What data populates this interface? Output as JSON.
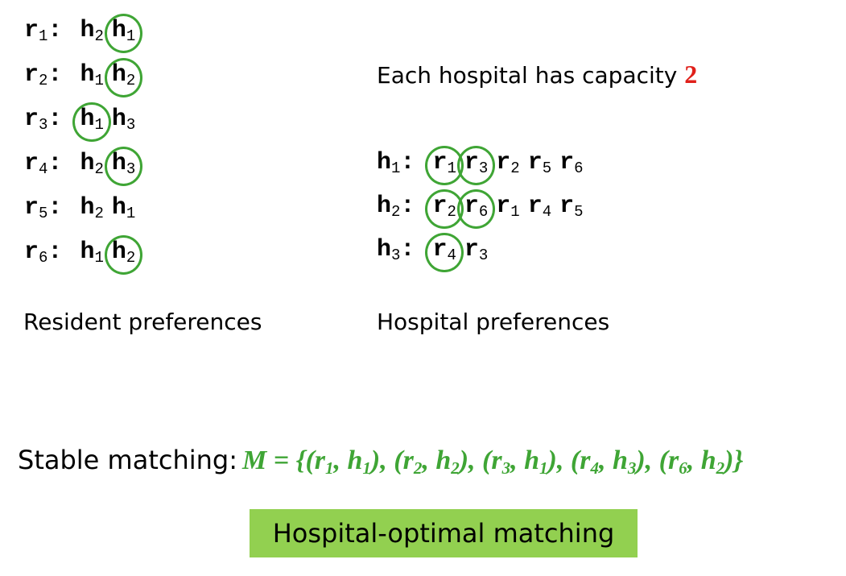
{
  "residents": [
    {
      "label": "r",
      "sub": "1",
      "prefs": [
        {
          "name": "h",
          "sub": "2",
          "matched": false
        },
        {
          "name": "h",
          "sub": "1",
          "matched": true
        }
      ]
    },
    {
      "label": "r",
      "sub": "2",
      "prefs": [
        {
          "name": "h",
          "sub": "1",
          "matched": false
        },
        {
          "name": "h",
          "sub": "2",
          "matched": true
        }
      ]
    },
    {
      "label": "r",
      "sub": "3",
      "prefs": [
        {
          "name": "h",
          "sub": "1",
          "matched": true
        },
        {
          "name": "h",
          "sub": "3",
          "matched": false
        }
      ]
    },
    {
      "label": "r",
      "sub": "4",
      "prefs": [
        {
          "name": "h",
          "sub": "2",
          "matched": false
        },
        {
          "name": "h",
          "sub": "3",
          "matched": true
        }
      ]
    },
    {
      "label": "r",
      "sub": "5",
      "prefs": [
        {
          "name": "h",
          "sub": "2",
          "matched": false
        },
        {
          "name": "h",
          "sub": "1",
          "matched": false
        }
      ]
    },
    {
      "label": "r",
      "sub": "6",
      "prefs": [
        {
          "name": "h",
          "sub": "1",
          "matched": false
        },
        {
          "name": "h",
          "sub": "2",
          "matched": true
        }
      ]
    }
  ],
  "hospitals": [
    {
      "label": "h",
      "sub": "1",
      "prefs": [
        {
          "name": "r",
          "sub": "1",
          "matched": true
        },
        {
          "name": "r",
          "sub": "3",
          "matched": true
        },
        {
          "name": "r",
          "sub": "2",
          "matched": false
        },
        {
          "name": "r",
          "sub": "5",
          "matched": false
        },
        {
          "name": "r",
          "sub": "6",
          "matched": false
        }
      ]
    },
    {
      "label": "h",
      "sub": "2",
      "prefs": [
        {
          "name": "r",
          "sub": "2",
          "matched": true
        },
        {
          "name": "r",
          "sub": "6",
          "matched": true
        },
        {
          "name": "r",
          "sub": "1",
          "matched": false
        },
        {
          "name": "r",
          "sub": "4",
          "matched": false
        },
        {
          "name": "r",
          "sub": "5",
          "matched": false
        }
      ]
    },
    {
      "label": "h",
      "sub": "3",
      "prefs": [
        {
          "name": "r",
          "sub": "4",
          "matched": true
        },
        {
          "name": "r",
          "sub": "3",
          "matched": false
        }
      ]
    }
  ],
  "capacity_text": "Each hospital has capacity",
  "capacity_value": "2",
  "resident_caption": "Resident preferences",
  "hospital_caption": "Hospital preferences",
  "stable_label": "Stable matching:",
  "matching_name": "M",
  "matching_pairs": [
    {
      "r": "1",
      "h": "1"
    },
    {
      "r": "2",
      "h": "2"
    },
    {
      "r": "3",
      "h": "1"
    },
    {
      "r": "4",
      "h": "3"
    },
    {
      "r": "6",
      "h": "2"
    }
  ],
  "badge_text": "Hospital-optimal matching",
  "colors": {
    "match_circle": "#3fa535",
    "capacity_value": "#e0201a",
    "badge_bg": "#92d050",
    "matching_text": "#3fa535"
  }
}
